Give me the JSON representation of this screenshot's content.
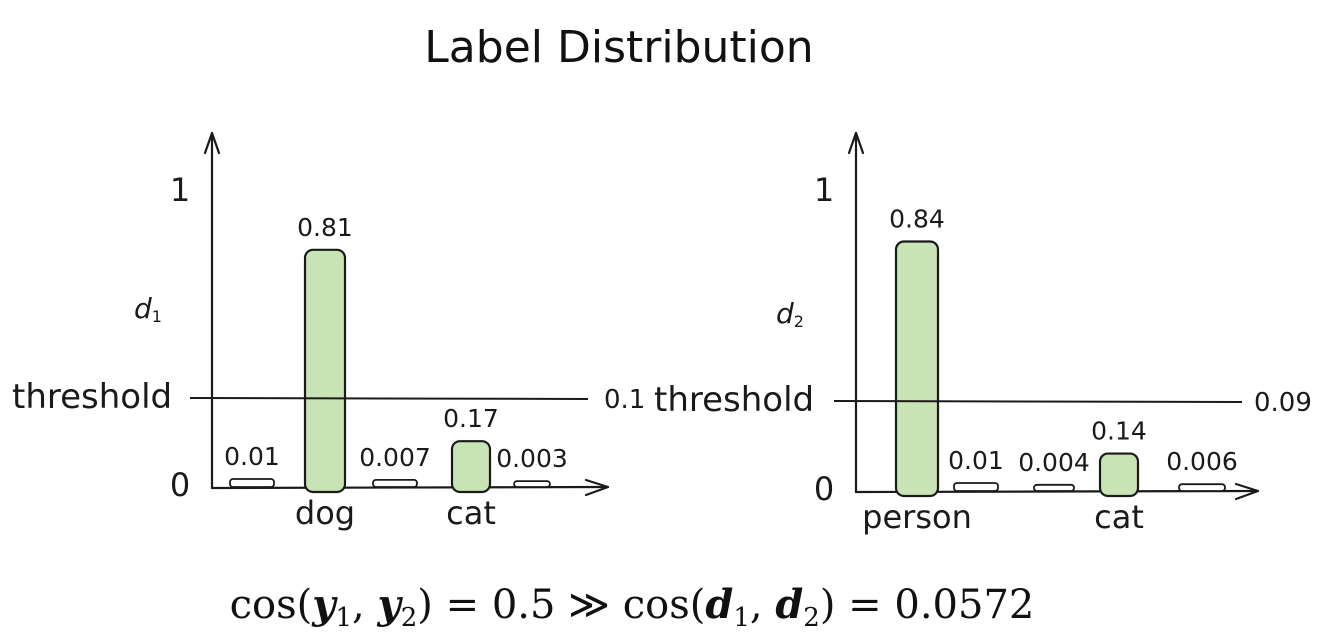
{
  "title": "Label Distribution",
  "formula": {
    "cos1": "cos(",
    "y": "y",
    "sub1": "1",
    "comma": ", ",
    "sub2": "2",
    "eq1": ") = 0.5 ≫ cos(",
    "d": "d",
    "eq2": ") = 0.0572"
  },
  "colors": {
    "bar_fill": "#c8e3b4",
    "stroke": "#1a1a1a"
  },
  "chart_data": [
    {
      "type": "bar",
      "ylabel": "d",
      "ylabel_sub": "1",
      "y_ticks": [
        "0",
        "1"
      ],
      "ylim": [
        0,
        1
      ],
      "threshold": {
        "label": "threshold",
        "value": 0.1,
        "value_label": "0.1"
      },
      "bars": [
        {
          "category": "",
          "value": 0.01,
          "label": "0.01"
        },
        {
          "category": "dog",
          "value": 0.81,
          "label": "0.81"
        },
        {
          "category": "",
          "value": 0.007,
          "label": "0.007"
        },
        {
          "category": "cat",
          "value": 0.17,
          "label": "0.17"
        },
        {
          "category": "",
          "value": 0.003,
          "label": "0.003"
        }
      ]
    },
    {
      "type": "bar",
      "ylabel": "d",
      "ylabel_sub": "2",
      "y_ticks": [
        "0",
        "1"
      ],
      "ylim": [
        0,
        1
      ],
      "threshold": {
        "label": "threshold",
        "value": 0.09,
        "value_label": "0.09"
      },
      "bars": [
        {
          "category": "person",
          "value": 0.84,
          "label": "0.84"
        },
        {
          "category": "",
          "value": 0.01,
          "label": "0.01"
        },
        {
          "category": "",
          "value": 0.004,
          "label": "0.004"
        },
        {
          "category": "cat",
          "value": 0.14,
          "label": "0.14"
        },
        {
          "category": "",
          "value": 0.006,
          "label": "0.006"
        }
      ]
    }
  ]
}
